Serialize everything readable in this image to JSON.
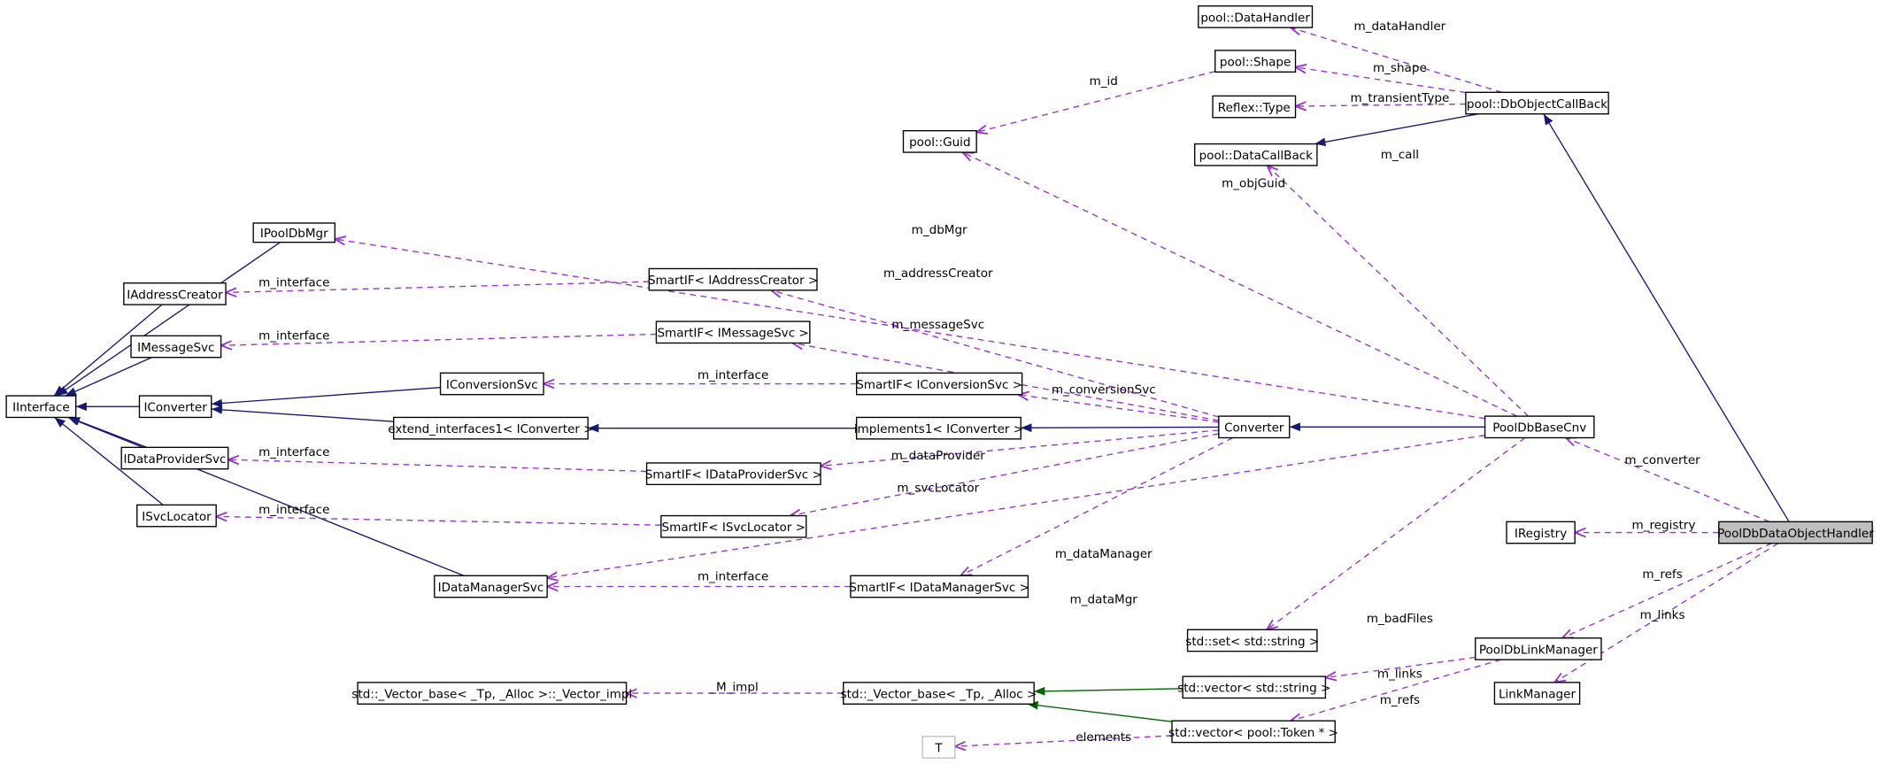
{
  "nodes": [
    {
      "label": "IInterface"
    },
    {
      "label": "IPoolDbMgr"
    },
    {
      "label": "IAddressCreator"
    },
    {
      "label": "IMessageSvc"
    },
    {
      "label": "IConverter"
    },
    {
      "label": "IDataProviderSvc"
    },
    {
      "label": "ISvcLocator"
    },
    {
      "label": "IDataManagerSvc"
    },
    {
      "label": "IConversionSvc"
    },
    {
      "label": "extend_interfaces1< IConverter >"
    },
    {
      "label": "SmartIF< IAddressCreator >"
    },
    {
      "label": "SmartIF< IMessageSvc >"
    },
    {
      "label": "SmartIF< IConversionSvc >"
    },
    {
      "label": "implements1< IConverter >"
    },
    {
      "label": "SmartIF< IDataProviderSvc >"
    },
    {
      "label": "SmartIF< ISvcLocator >"
    },
    {
      "label": "SmartIF< IDataManagerSvc >"
    },
    {
      "label": "Converter"
    },
    {
      "label": "PoolDbBaseCnv"
    },
    {
      "label": "pool::DataHandler"
    },
    {
      "label": "pool::Shape"
    },
    {
      "label": "Reflex::Type"
    },
    {
      "label": "pool::Guid"
    },
    {
      "label": "pool::DataCallBack"
    },
    {
      "label": "pool::DbObjectCallBack"
    },
    {
      "label": "IRegistry"
    },
    {
      "label": "PoolDbDataObjectHandler",
      "highlight": true
    },
    {
      "label": "PoolDbLinkManager"
    },
    {
      "label": "LinkManager"
    },
    {
      "label": "std::set< std::string >"
    },
    {
      "label": "std::vector< std::string >"
    },
    {
      "label": "std::vector< pool::Token * >"
    },
    {
      "label": "std::_Vector_base< _Tp, _Alloc >"
    },
    {
      "label": "std::_Vector_base< _Tp, _Alloc >::_Vector_impl"
    },
    {
      "label": "T",
      "undocumented": true
    }
  ],
  "edges": [
    {
      "from": "IPoolDbMgr",
      "to": "IInterface",
      "kind": "inherit"
    },
    {
      "from": "IAddressCreator",
      "to": "IInterface",
      "kind": "inherit"
    },
    {
      "from": "IMessageSvc",
      "to": "IInterface",
      "kind": "inherit"
    },
    {
      "from": "IConverter",
      "to": "IInterface",
      "kind": "inherit"
    },
    {
      "from": "IDataProviderSvc",
      "to": "IInterface",
      "kind": "inherit"
    },
    {
      "from": "ISvcLocator",
      "to": "IInterface",
      "kind": "inherit"
    },
    {
      "from": "IDataManagerSvc",
      "to": "IInterface",
      "kind": "inherit"
    },
    {
      "from": "IConversionSvc",
      "to": "IConverter",
      "kind": "inherit"
    },
    {
      "from": "extend_interfaces1< IConverter >",
      "to": "IConverter",
      "kind": "inherit"
    },
    {
      "from": "implements1< IConverter >",
      "to": "extend_interfaces1< IConverter >",
      "kind": "inherit"
    },
    {
      "from": "Converter",
      "to": "implements1< IConverter >",
      "kind": "inherit"
    },
    {
      "from": "PoolDbBaseCnv",
      "to": "Converter",
      "kind": "inherit"
    },
    {
      "from": "pool::DbObjectCallBack",
      "to": "pool::DataCallBack",
      "kind": "inherit"
    },
    {
      "from": "PoolDbDataObjectHandler",
      "to": "pool::DbObjectCallBack",
      "kind": "inherit"
    },
    {
      "from": "std::vector< std::string >",
      "to": "std::_Vector_base< _Tp, _Alloc >",
      "kind": "template"
    },
    {
      "from": "std::vector< pool::Token * >",
      "to": "std::_Vector_base< _Tp, _Alloc >",
      "kind": "template"
    },
    {
      "from": "pool::DbObjectCallBack",
      "to": "pool::DataHandler",
      "kind": "use",
      "label": "m_dataHandler"
    },
    {
      "from": "pool::DbObjectCallBack",
      "to": "pool::Shape",
      "kind": "use",
      "label": "m_shape"
    },
    {
      "from": "pool::DbObjectCallBack",
      "to": "Reflex::Type",
      "kind": "use",
      "label": "m_transientType"
    },
    {
      "from": "pool::Shape",
      "to": "pool::Guid",
      "kind": "use",
      "label": "m_id"
    },
    {
      "from": "PoolDbBaseCnv",
      "to": "pool::DataCallBack",
      "kind": "use",
      "label": "m_call"
    },
    {
      "from": "PoolDbBaseCnv",
      "to": "pool::Guid",
      "kind": "use",
      "label": "m_objGuid"
    },
    {
      "from": "PoolDbBaseCnv",
      "to": "IPoolDbMgr",
      "kind": "use",
      "label": "m_dbMgr"
    },
    {
      "from": "SmartIF< IAddressCreator >",
      "to": "IAddressCreator",
      "kind": "use",
      "label": "m_interface"
    },
    {
      "from": "Converter",
      "to": "SmartIF< IAddressCreator >",
      "kind": "use",
      "label": "m_addressCreator"
    },
    {
      "from": "SmartIF< IMessageSvc >",
      "to": "IMessageSvc",
      "kind": "use",
      "label": "m_interface"
    },
    {
      "from": "Converter",
      "to": "SmartIF< IMessageSvc >",
      "kind": "use",
      "label": "m_messageSvc"
    },
    {
      "from": "SmartIF< IConversionSvc >",
      "to": "IConversionSvc",
      "kind": "use",
      "label": "m_interface"
    },
    {
      "from": "Converter",
      "to": "SmartIF< IConversionSvc >",
      "kind": "use",
      "label": "m_conversionSvc"
    },
    {
      "from": "SmartIF< IDataProviderSvc >",
      "to": "IDataProviderSvc",
      "kind": "use",
      "label": "m_interface"
    },
    {
      "from": "Converter",
      "to": "SmartIF< IDataProviderSvc >",
      "kind": "use",
      "label": "m_dataProvider"
    },
    {
      "from": "SmartIF< ISvcLocator >",
      "to": "ISvcLocator",
      "kind": "use",
      "label": "m_interface"
    },
    {
      "from": "Converter",
      "to": "SmartIF< ISvcLocator >",
      "kind": "use",
      "label": "m_svcLocator"
    },
    {
      "from": "SmartIF< IDataManagerSvc >",
      "to": "IDataManagerSvc",
      "kind": "use",
      "label": "m_interface"
    },
    {
      "from": "Converter",
      "to": "SmartIF< IDataManagerSvc >",
      "kind": "use",
      "label": "m_dataManager"
    },
    {
      "from": "PoolDbBaseCnv",
      "to": "IDataManagerSvc",
      "kind": "use",
      "label": "m_dataMgr"
    },
    {
      "from": "PoolDbDataObjectHandler",
      "to": "PoolDbBaseCnv",
      "kind": "use",
      "label": "m_converter"
    },
    {
      "from": "PoolDbDataObjectHandler",
      "to": "IRegistry",
      "kind": "use",
      "label": "m_registry"
    },
    {
      "from": "PoolDbDataObjectHandler",
      "to": "PoolDbLinkManager",
      "kind": "use",
      "label": "m_refs"
    },
    {
      "from": "PoolDbDataObjectHandler",
      "to": "LinkManager",
      "kind": "use",
      "label": "m_links"
    },
    {
      "from": "PoolDbBaseCnv",
      "to": "std::set< std::string >",
      "kind": "use",
      "label": "m_badFiles"
    },
    {
      "from": "PoolDbLinkManager",
      "to": "std::vector< std::string >",
      "kind": "use",
      "label": "m_links"
    },
    {
      "from": "PoolDbLinkManager",
      "to": "std::vector< pool::Token * >",
      "kind": "use",
      "label": "m_refs"
    },
    {
      "from": "std::_Vector_base< _Tp, _Alloc >",
      "to": "std::_Vector_base< _Tp, _Alloc >::_Vector_impl",
      "kind": "use",
      "label": "_M_impl"
    },
    {
      "from": "std::vector< pool::Token * >",
      "to": "T",
      "kind": "use",
      "label": "elements"
    }
  ]
}
